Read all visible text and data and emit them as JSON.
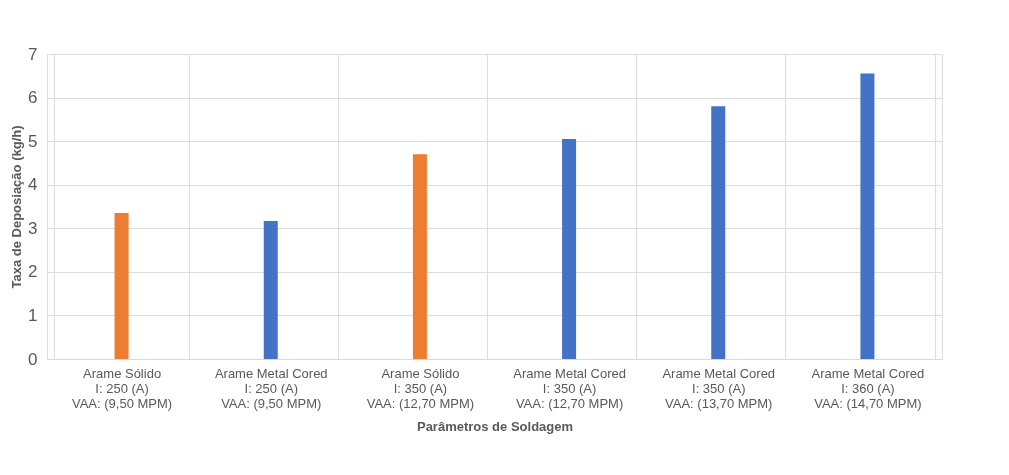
{
  "chart_data": {
    "type": "bar",
    "categories": [
      "Arame Sólido\nI: 250 (A)\nVAA: (9,50 MPM)",
      "Arame Metal Cored\nI: 250 (A)\nVAA: (9,50 MPM)",
      "Arame Sólido\nI: 350 (A)\nVAA: (12,70 MPM)",
      "Arame Metal Cored\nI: 350 (A)\nVAA: (12,70 MPM)",
      "Arame Metal Cored\nI: 350 (A)\nVAA: (13,70 MPM)",
      "Arame Metal Cored\nI: 360 (A)\nVAA: (14,70 MPM)"
    ],
    "values": [
      3.35,
      3.17,
      4.7,
      5.05,
      5.8,
      6.55
    ],
    "colors": [
      "#ed7d31",
      "#4472c4",
      "#ed7d31",
      "#4472c4",
      "#4472c4",
      "#4472c4"
    ],
    "xlabel": "Parâmetros de Soldagem",
    "ylabel": "Taxa de Deposiação (kg/h)",
    "ylim": [
      0,
      7
    ],
    "yticks": [
      0,
      1,
      2,
      3,
      4,
      5,
      6,
      7
    ],
    "grid": true,
    "legend": false
  }
}
